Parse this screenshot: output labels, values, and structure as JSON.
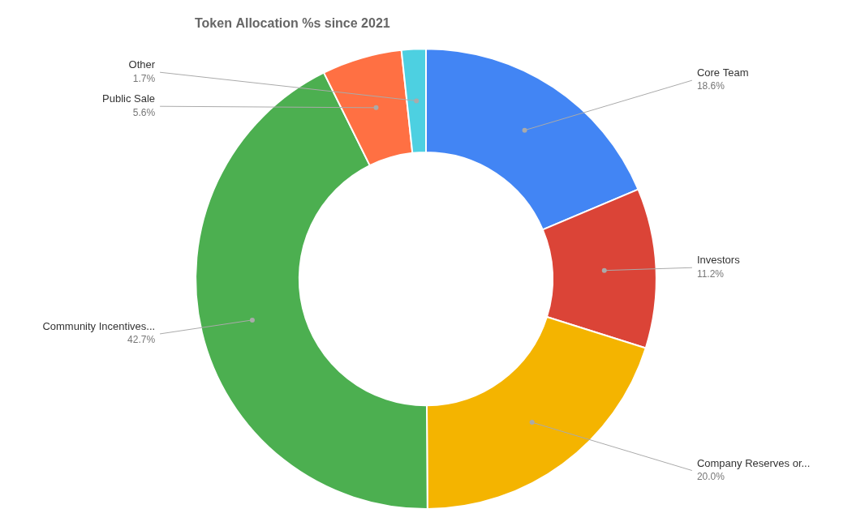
{
  "chart_data": {
    "type": "doughnut",
    "title": "Token Allocation %s since 2021",
    "categories": [
      "Core Team",
      "Investors",
      "Company Reserves or...",
      "Community Incentives...",
      "Public Sale",
      "Other"
    ],
    "values": [
      18.6,
      11.2,
      20.0,
      42.7,
      5.6,
      1.7
    ],
    "value_labels": [
      "18.6%",
      "11.2%",
      "20.0%",
      "42.7%",
      "5.6%",
      "1.7%"
    ],
    "colors": [
      "#4285F4",
      "#DB4437",
      "#F4B400",
      "#4CAF50",
      "#FF7043",
      "#4DD0E1"
    ],
    "data_labels": true
  }
}
